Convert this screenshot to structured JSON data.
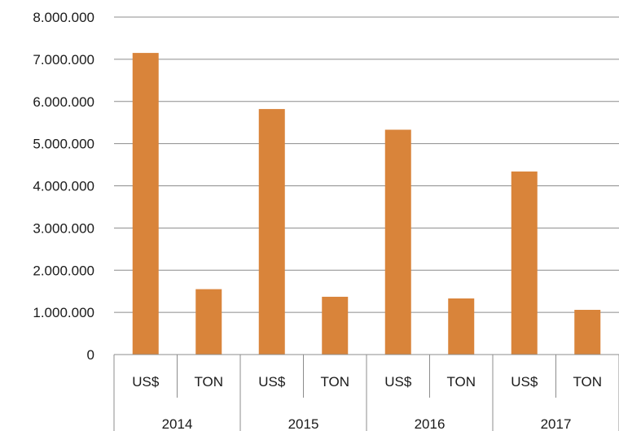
{
  "chart_data": {
    "type": "bar",
    "groups": [
      "2014",
      "2015",
      "2016",
      "2017"
    ],
    "subcategories": [
      "US$",
      "TON"
    ],
    "categories": [
      "2014 US$",
      "2014 TON",
      "2015 US$",
      "2015 TON",
      "2016 US$",
      "2016 TON",
      "2017 US$",
      "2017 TON"
    ],
    "values": [
      7150000,
      1550000,
      5820000,
      1370000,
      5330000,
      1330000,
      4340000,
      1060000
    ],
    "ylim": [
      0,
      8000000
    ],
    "yticks": [
      "0",
      "1.000.000",
      "2.000.000",
      "3.000.000",
      "4.000.000",
      "5.000.000",
      "6.000.000",
      "7.000.000",
      "8.000.000"
    ],
    "title": "",
    "xlabel": "",
    "ylabel": "",
    "grid": true,
    "legend": "none",
    "bar_color": "#D9843A"
  }
}
